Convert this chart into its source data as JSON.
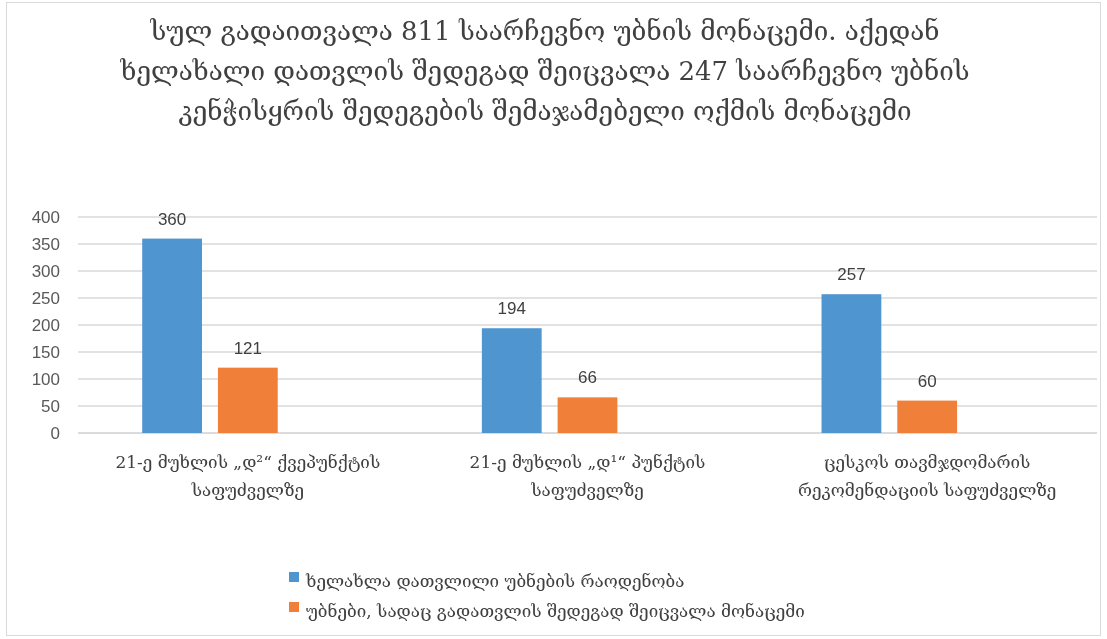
{
  "chart_data": {
    "type": "bar",
    "title": "სულ გადაითვალა 811 საარჩევნო უბნის მონაცემი. აქედან ხელახალი დათვლის შედეგად შეიცვალა 247 საარჩევნო უბნის კენჭისყრის შედეგების შემაჯამებელი ოქმის მონაცემი",
    "categories": [
      "21-ე მუხლის „დ²“ ქვეპუნქტის საფუძველზე",
      "21-ე მუხლის „დ¹“ პუნქტის საფუძველზე",
      "ცესკოს თავმჯდომარის რეკომენდაციის საფუძველზე"
    ],
    "series": [
      {
        "name": "ხელახლა დათვლილი უბნების რაოდენობა",
        "color": "#4f95d0",
        "values": [
          360,
          194,
          257
        ]
      },
      {
        "name": "უბნები, სადაც გადათვლის შედეგად შეიცვალა მონაცემი",
        "color": "#f07f3a",
        "values": [
          121,
          66,
          60
        ]
      }
    ],
    "ylim": [
      0,
      400
    ],
    "yticks": [
      0,
      50,
      100,
      150,
      200,
      250,
      300,
      350,
      400
    ],
    "grid": "y",
    "data_labels": true,
    "legend": "bottom"
  }
}
